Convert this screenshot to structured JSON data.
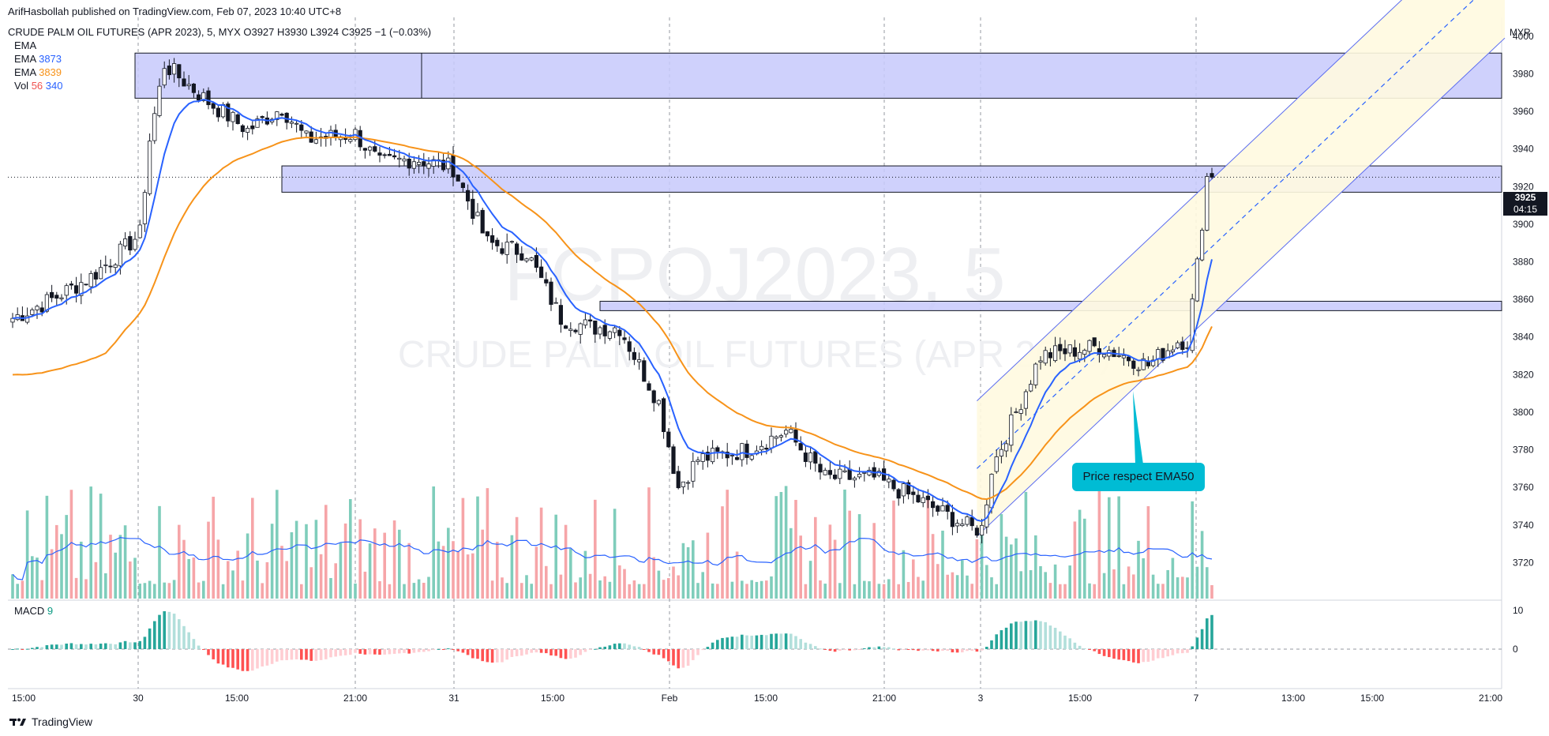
{
  "header": {
    "published": "ArifHasbollah published on TradingView.com, Feb 07, 2023 10:40 UTC+8",
    "symbol_line": "CRUDE PALM OIL FUTURES (APR 2023), 5, MYX  O3927  H3930  L3924  C3925  −1 (−0.03%)",
    "indicators": [
      {
        "label": "EMA",
        "value": ""
      },
      {
        "label": "EMA",
        "value": "3873",
        "color": "#2962ff"
      },
      {
        "label": "EMA",
        "value": "3839",
        "color": "#f7931a"
      },
      {
        "label": "Vol",
        "value": "56",
        "value2": "340",
        "color": "#ef5350",
        "color2": "#2962ff"
      }
    ]
  },
  "watermark": {
    "line1": "FCPOJ2023, 5",
    "line2": "CRUDE PALM OIL FUTURES (APR 2023)"
  },
  "price_tag": {
    "price": "3925",
    "countdown": "04:15"
  },
  "callout": {
    "text": "Price respect EMA50"
  },
  "macd_pane": {
    "label": "MACD",
    "value": "9",
    "ticks": [
      "10",
      "0"
    ]
  },
  "footer": {
    "brand": "TradingView"
  },
  "colors": {
    "up": "#089981",
    "down": "#f23645",
    "ema_fast": "#2962ff",
    "ema_slow": "#f7931a",
    "zone": "#c7c9fb",
    "channel": "#fff9e0"
  },
  "chart_data": {
    "type": "candlestick",
    "y_axis_unit": "MYR",
    "ylim": [
      3700,
      4010
    ],
    "y_ticks": [
      4000,
      3980,
      3960,
      3940,
      3920,
      3900,
      3880,
      3860,
      3840,
      3820,
      3800,
      3780,
      3760,
      3740,
      3720
    ],
    "x_ticks": [
      "15:00",
      "30",
      "15:00",
      "21:00",
      "31",
      "15:00",
      "Feb",
      "15:00",
      "21:00",
      "3",
      "15:00",
      "7",
      "13:00",
      "15:00",
      "21:00"
    ],
    "price_anchors": [
      {
        "t": 0,
        "p": 3850
      },
      {
        "t": 8,
        "p": 3860
      },
      {
        "t": 16,
        "p": 3872
      },
      {
        "t": 22,
        "p": 3885
      },
      {
        "t": 26,
        "p": 3895
      },
      {
        "t": 28,
        "p": 3945
      },
      {
        "t": 31,
        "p": 3985
      },
      {
        "t": 40,
        "p": 3965
      },
      {
        "t": 48,
        "p": 3950
      },
      {
        "t": 55,
        "p": 3962
      },
      {
        "t": 60,
        "p": 3945
      },
      {
        "t": 70,
        "p": 3948
      },
      {
        "t": 75,
        "p": 3932
      },
      {
        "t": 82,
        "p": 3935
      },
      {
        "t": 90,
        "p": 3930
      },
      {
        "t": 97,
        "p": 3890
      },
      {
        "t": 105,
        "p": 3885
      },
      {
        "t": 112,
        "p": 3850
      },
      {
        "t": 118,
        "p": 3845
      },
      {
        "t": 124,
        "p": 3845
      },
      {
        "t": 132,
        "p": 3805
      },
      {
        "t": 136,
        "p": 3760
      },
      {
        "t": 140,
        "p": 3775
      },
      {
        "t": 150,
        "p": 3780
      },
      {
        "t": 158,
        "p": 3790
      },
      {
        "t": 166,
        "p": 3765
      },
      {
        "t": 176,
        "p": 3765
      },
      {
        "t": 186,
        "p": 3752
      },
      {
        "t": 196,
        "p": 3738
      },
      {
        "t": 198,
        "p": 3738
      },
      {
        "t": 200,
        "p": 3770
      },
      {
        "t": 210,
        "p": 3830
      },
      {
        "t": 222,
        "p": 3835
      },
      {
        "t": 232,
        "p": 3825
      },
      {
        "t": 238,
        "p": 3838
      },
      {
        "t": 240,
        "p": 3838
      },
      {
        "t": 242,
        "p": 3878
      },
      {
        "t": 244,
        "p": 3925
      }
    ],
    "last": {
      "open": 3927,
      "high": 3930,
      "low": 3924,
      "close": 3925,
      "change": -1,
      "change_pct": -0.03
    },
    "ema_fast_last": 3873,
    "ema_slow_last": 3839,
    "volume_last": 56,
    "volume_ma_last": 340,
    "macd_last": 9,
    "macd_ticks": [
      10,
      0
    ],
    "zones": [
      {
        "from_t": 25,
        "to_t": 330,
        "low": 3967,
        "high": 3991
      },
      {
        "from_t": 55,
        "to_t": 330,
        "low": 3917,
        "high": 3931
      },
      {
        "from_t": 120,
        "to_t": 330,
        "low": 3854,
        "high": 3859
      }
    ],
    "channel": {
      "from_t": 197,
      "to_t": 300,
      "mid_start": 3770,
      "mid_end": 4000,
      "half_width": 36
    }
  }
}
